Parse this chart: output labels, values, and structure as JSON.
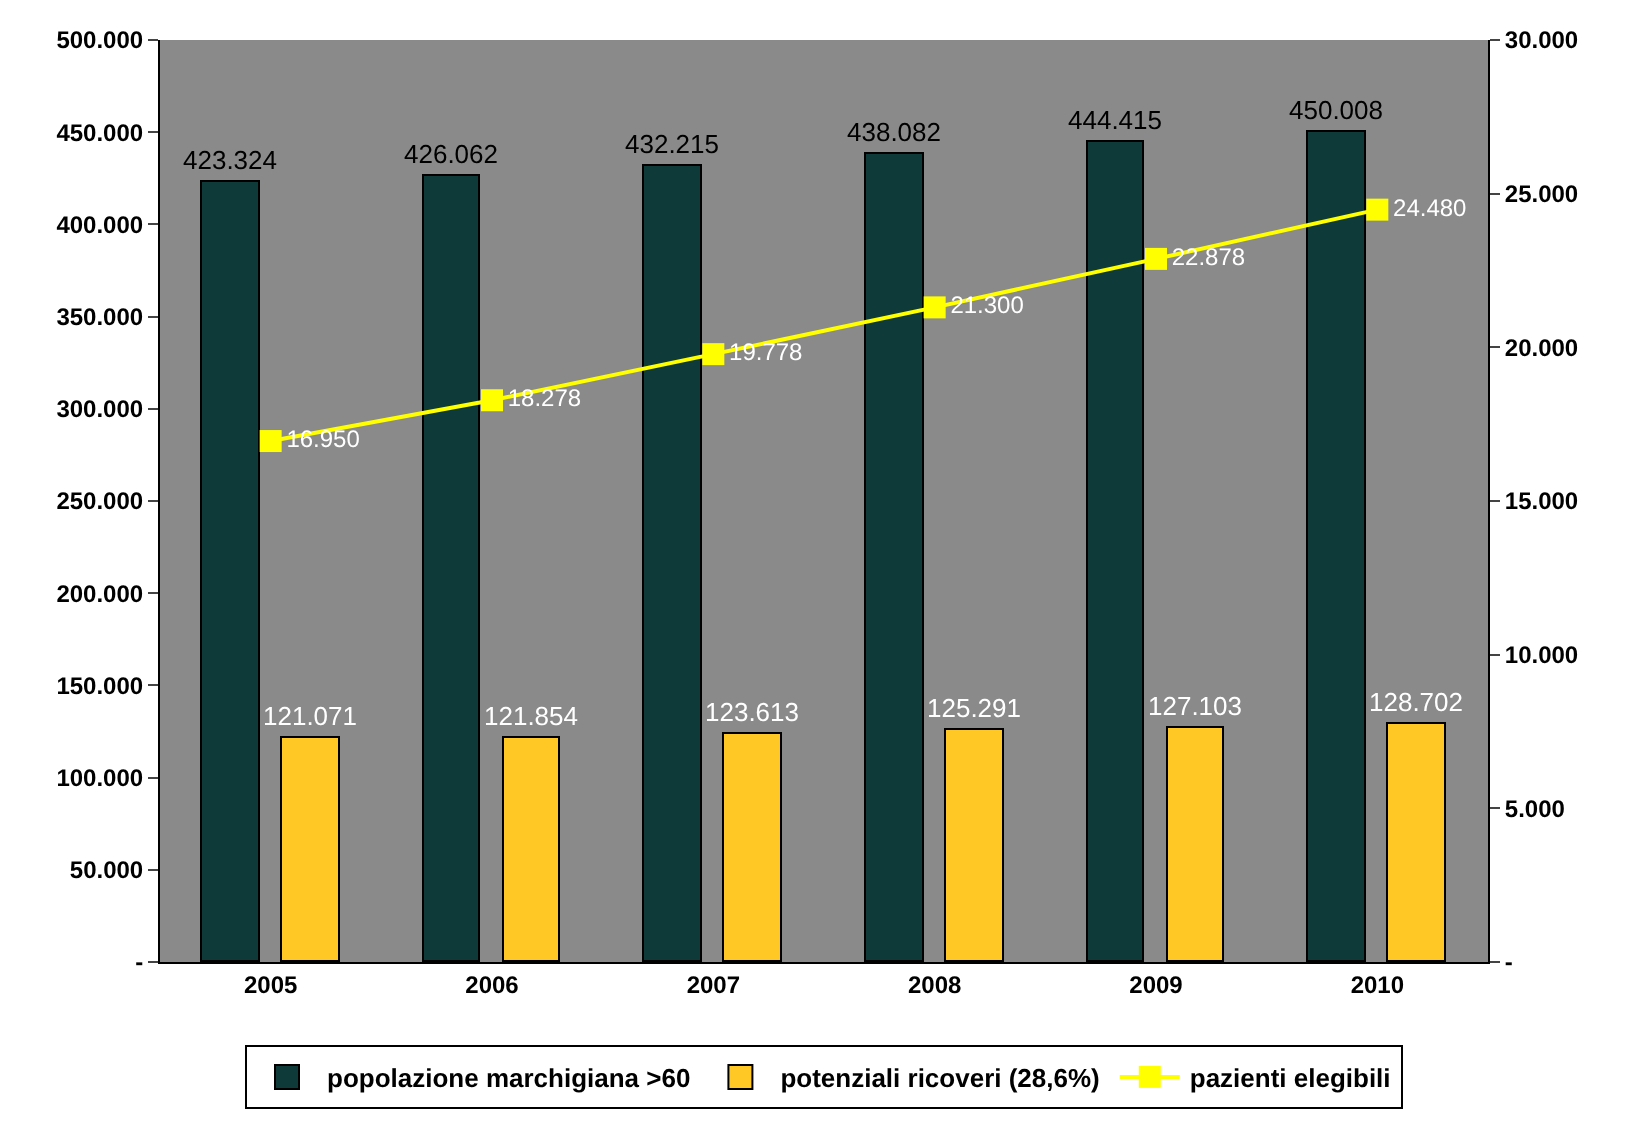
{
  "chart_data": {
    "type": "bar",
    "categories": [
      "2005",
      "2006",
      "2007",
      "2008",
      "2009",
      "2010"
    ],
    "series": [
      {
        "name": "popolazione marchigiana >60",
        "color": "#0e3b3a",
        "values": [
          423324,
          426062,
          432215,
          438082,
          444415,
          450008
        ],
        "value_labels": [
          "423.324",
          "426.062",
          "432.215",
          "438.082",
          "444.415",
          "450.008"
        ]
      },
      {
        "name": "potenziali ricoveri (28,6%)",
        "color": "#ffc824",
        "values": [
          121071,
          121854,
          123613,
          125291,
          127103,
          128702
        ],
        "value_labels": [
          "121.071",
          "121.854",
          "123.613",
          "125.291",
          "127.103",
          "128.702"
        ]
      },
      {
        "name": "pazienti elegibili",
        "type": "line",
        "axis": "y2",
        "color": "#ffff00",
        "marker": "square",
        "values": [
          16950,
          18278,
          19778,
          21300,
          22878,
          24480
        ],
        "value_labels": [
          "16.950",
          "18.278",
          "19.778",
          "21.300",
          "22.878",
          "24.480"
        ]
      }
    ],
    "ylim": [
      0,
      500000
    ],
    "yticks": [
      {
        "value": 0,
        "label": "-"
      },
      {
        "value": 50000,
        "label": "50.000"
      },
      {
        "value": 100000,
        "label": "100.000"
      },
      {
        "value": 150000,
        "label": "150.000"
      },
      {
        "value": 200000,
        "label": "200.000"
      },
      {
        "value": 250000,
        "label": "250.000"
      },
      {
        "value": 300000,
        "label": "300.000"
      },
      {
        "value": 350000,
        "label": "350.000"
      },
      {
        "value": 400000,
        "label": "400.000"
      },
      {
        "value": 450000,
        "label": "450.000"
      },
      {
        "value": 500000,
        "label": "500.000"
      }
    ],
    "y2lim": [
      0,
      30000
    ],
    "y2ticks": [
      {
        "value": 0,
        "label": "-"
      },
      {
        "value": 5000,
        "label": "5.000"
      },
      {
        "value": 10000,
        "label": "10.000"
      },
      {
        "value": 15000,
        "label": "15.000"
      },
      {
        "value": 20000,
        "label": "20.000"
      },
      {
        "value": 25000,
        "label": "25.000"
      },
      {
        "value": 30000,
        "label": "30.000"
      }
    ],
    "grid": false,
    "legend": "bottom"
  }
}
